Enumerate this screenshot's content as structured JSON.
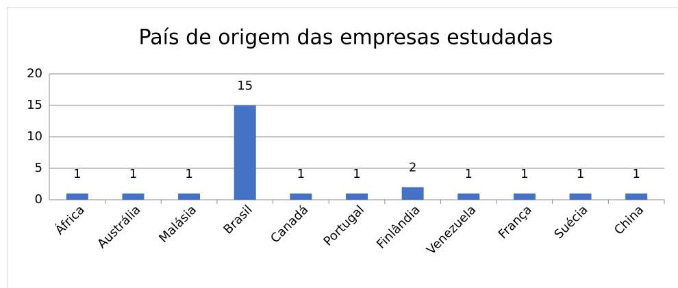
{
  "chart_data": {
    "type": "bar",
    "title": "País de origem das empresas estudadas",
    "categories": [
      "África",
      "Austrália",
      "Malásia",
      "Brasil",
      "Canadá",
      "Portugal",
      "Finlândia",
      "Venezuela",
      "França",
      "Suécia",
      "China"
    ],
    "values": [
      1,
      1,
      1,
      15,
      1,
      1,
      2,
      1,
      1,
      1,
      1
    ],
    "color": "#4472c4",
    "ylim": [
      0,
      20
    ],
    "yticks": [
      0,
      5,
      10,
      15,
      20
    ],
    "grid": true
  }
}
